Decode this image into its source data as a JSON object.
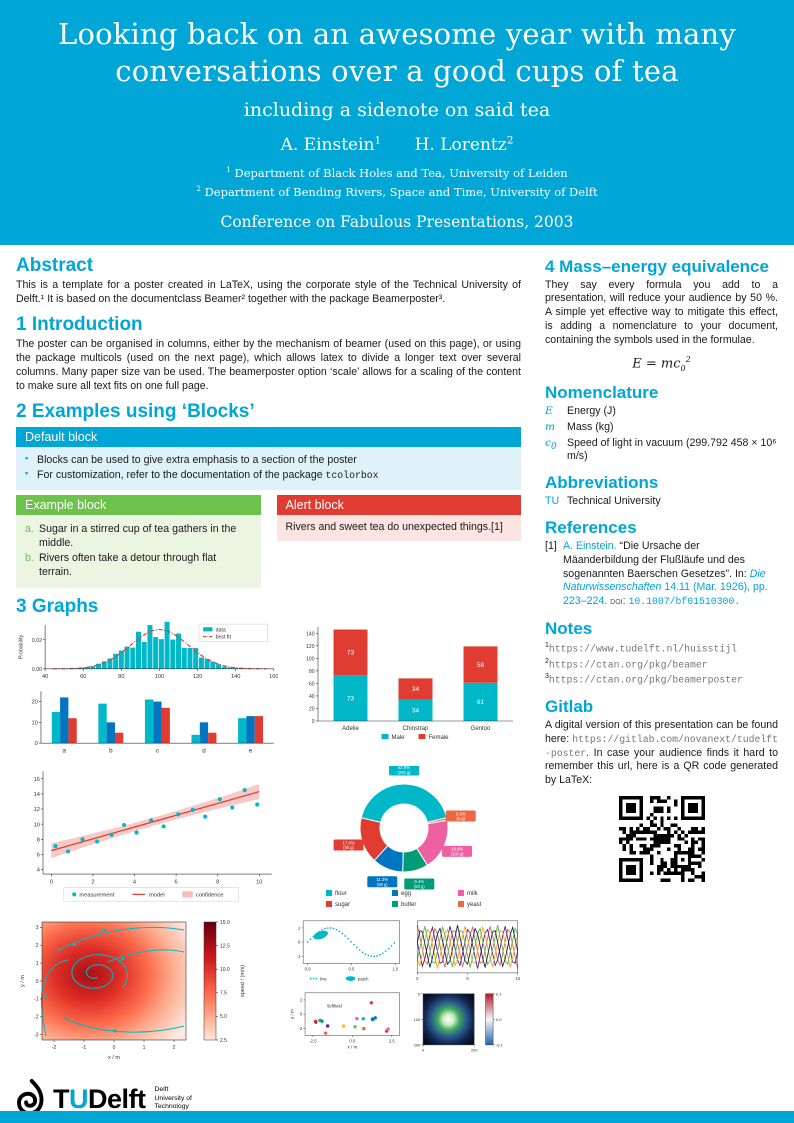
{
  "colors": {
    "primary": "#00A6D6",
    "teal": "#00B8C8",
    "blue": "#0076C2",
    "red": "#E03C31",
    "green": "#6CC24A",
    "dark_green": "#009B77",
    "pink": "#EF60A3",
    "orange": "#EC6842",
    "band_pink": "#F6BDB9",
    "palette": [
      "#00B8C8",
      "#0076C2",
      "#E03C31",
      "#009B77",
      "#EF60A3",
      "#EC6842",
      "#6F1D77",
      "#FFB81C",
      "#6CC24A",
      "#0C2340"
    ]
  },
  "header": {
    "title_line1": "Looking back on an awesome year with many",
    "title_line2": "conversations over a good cups of tea",
    "subtitle": "including a sidenote on said tea",
    "authors": [
      {
        "name": "A. Einstein",
        "sup": "1"
      },
      {
        "name": "H. Lorentz",
        "sup": "2"
      }
    ],
    "affiliations": [
      {
        "sup": "1",
        "text": "Department of Black Holes and Tea, University of Leiden"
      },
      {
        "sup": "2",
        "text": "Department of Bending Rivers, Space and Time, University of Delft"
      }
    ],
    "conference": "Conference on Fabulous Presentations, 2003"
  },
  "left": {
    "abstract": {
      "heading": "Abstract",
      "text": "This is a template for a poster created in LaTeX, using the corporate style of the Technical University of Delft.¹ It is based on the documentclass Beamer² together with the package Beamerposter³."
    },
    "introduction": {
      "heading": "1 Introduction",
      "text": "The poster can be organised in columns, either by the mechanism of beamer (used on this page), or using the package multicols (used on the next page), which allows latex to divide a longer text over several columns. Many paper size van be used. The beamerposter option ‘scale’ allows for a scaling of the content to make sure all text fits on one full page."
    },
    "examples": {
      "heading": "2 Examples using ‘Blocks’",
      "default_block": {
        "title": "Default block",
        "item1": "Blocks can be used to give extra emphasis to a section of the poster",
        "item2_text": "For customization, refer to the documentation of the package ",
        "item2_code": "tcolorbox"
      },
      "example_block": {
        "title": "Example block",
        "item_a_label": "a.",
        "item_a": "Sugar in a stirred cup of tea gathers in the middle.",
        "item_b_label": "b.",
        "item_b": "Rivers often take a detour through flat terrain."
      },
      "alert_block": {
        "title": "Alert block",
        "text": "Rivers and sweet tea do unexpected things.[1]"
      }
    },
    "graphs": {
      "heading": "3 Graphs"
    }
  },
  "right": {
    "mass_energy": {
      "heading": "4 Mass–energy equivalence",
      "text": "They say every formula you add to a presentation, will reduce your audience by 50 %. A simple yet effective way to mitigate this effect, is adding a nomenclature to your document, containing the symbols used in the formulae.",
      "formula_lhs": "E = mc",
      "formula_sub": "0",
      "formula_sup": "2"
    },
    "nomenclature": {
      "heading": "Nomenclature",
      "rows": [
        {
          "symbol": "E",
          "desc": "Energy (J)"
        },
        {
          "symbol": "m",
          "desc": "Mass (kg)"
        },
        {
          "symbol": "c",
          "sub": "0",
          "desc": "Speed of light in vacuum (299.792 458 × 10⁶ m/s)"
        }
      ]
    },
    "abbreviations": {
      "heading": "Abbreviations",
      "rows": [
        {
          "abbr": "TU",
          "desc": "Technical University"
        }
      ]
    },
    "references": {
      "heading": "References",
      "items": [
        {
          "num": "[1]",
          "authors": "A. Einstein.",
          "title": "“Die Ursache der Mäanderbildung der Flußläufe und des sogenannten Baerschen Gesetzes”. In:",
          "journal": "Die Naturwissenschaften",
          "tail": "14.11 (Mar. 1926), pp. 223–224.",
          "doi_label": "doi:",
          "doi": "10.1007/bf01510300."
        }
      ]
    },
    "notes": {
      "heading": "Notes",
      "items": [
        {
          "sup": "1",
          "url": "https://www.tudelft.nl/huisstijl"
        },
        {
          "sup": "2",
          "url": "https://ctan.org/pkg/beamer"
        },
        {
          "sup": "3",
          "url": "https://ctan.org/pkg/beamerposter"
        }
      ]
    },
    "gitlab": {
      "heading": "Gitlab",
      "text_before": "A digital version of this presentation can be found here: ",
      "url": "https://gitlab.com/novanext/tudelft-poster",
      "text_after": ". In case your audience finds it hard to remember this url, here is a QR code generated by LaTeX:"
    }
  },
  "logo": {
    "tu_t": "T",
    "tu_u": "U",
    "delft": "Delft",
    "tagline1": "Delft",
    "tagline2": "University of",
    "tagline3": "Technology"
  },
  "chart_data": {
    "histogram": {
      "type": "bar",
      "ylabel": "Probability",
      "xlim": [
        40,
        160
      ],
      "xticks": [
        40,
        60,
        80,
        100,
        120,
        140,
        160
      ],
      "yticks": [
        "0.00",
        "0.02"
      ],
      "legend": [
        "data",
        "best fit"
      ],
      "fit": {
        "mean": 100,
        "std": 15,
        "peak": 0.027
      }
    },
    "grouped_bars": {
      "type": "bar",
      "categories": [
        "a",
        "b",
        "c",
        "d",
        "e"
      ],
      "series": [
        {
          "color": "teal",
          "values": [
            15,
            19,
            21,
            4,
            12
          ]
        },
        {
          "color": "blue",
          "values": [
            22,
            10,
            20,
            10,
            13
          ]
        },
        {
          "color": "red",
          "values": [
            12,
            5,
            17,
            5,
            13
          ]
        }
      ],
      "yticks": [
        0,
        10,
        20
      ]
    },
    "stacked_bars": {
      "type": "bar",
      "categories": [
        "Adelie",
        "Chinstrap",
        "Gentoo"
      ],
      "series": [
        {
          "name": "Male",
          "color": "teal",
          "values": [
            73,
            34,
            61
          ]
        },
        {
          "name": "Female",
          "color": "red",
          "values": [
            73,
            34,
            58
          ]
        }
      ],
      "ylim": [
        0,
        140
      ],
      "yticks": [
        0,
        20,
        40,
        60,
        80,
        100,
        120,
        140
      ]
    },
    "regression": {
      "type": "scatter",
      "legend": [
        "measurement",
        "model",
        "confidence"
      ],
      "xticks": [
        0,
        2,
        4,
        6,
        8,
        10
      ],
      "yticks": [
        4,
        6,
        8,
        10,
        12,
        14,
        16
      ],
      "model": {
        "intercept": 6.5,
        "slope": 0.78
      },
      "points": [
        [
          0.2,
          7.1
        ],
        [
          0.8,
          6.4
        ],
        [
          1.5,
          8.0
        ],
        [
          2.2,
          7.7
        ],
        [
          2.9,
          8.6
        ],
        [
          3.5,
          9.9
        ],
        [
          4.1,
          8.9
        ],
        [
          4.8,
          10.5
        ],
        [
          5.4,
          9.7
        ],
        [
          6.1,
          11.3
        ],
        [
          6.8,
          11.9
        ],
        [
          7.4,
          11.0
        ],
        [
          8.1,
          13.3
        ],
        [
          8.7,
          12.2
        ],
        [
          9.3,
          14.5
        ],
        [
          9.9,
          12.6
        ]
      ]
    },
    "donut": {
      "type": "pie",
      "slices": [
        {
          "label": "flour",
          "pct": 42.5,
          "grams": 225,
          "color": "#00B8C8"
        },
        {
          "label": "sugar",
          "pct": 17.0,
          "grams": 90,
          "color": "#E03C31"
        },
        {
          "label": "egg",
          "pct": 11.3,
          "grams": 60,
          "color": "#0076C2"
        },
        {
          "label": "butter",
          "pct": 9.4,
          "grams": 50,
          "color": "#009B77"
        },
        {
          "label": "milk",
          "pct": 18.9,
          "grams": 100,
          "color": "#EF60A3"
        },
        {
          "label": "yeast",
          "pct": 0.9,
          "grams": 5,
          "color": "#EC6842"
        }
      ]
    },
    "streamplot": {
      "type": "heatmap",
      "xlabel": "x / m",
      "ylabel": "y / m",
      "xticks": [
        -2,
        -1,
        0,
        1,
        2
      ],
      "yticks": [
        -3,
        -2,
        -1,
        0,
        1,
        2,
        3
      ],
      "colorbar": {
        "label": "speed / (m/s)",
        "ticks": [
          "15.0",
          "12.5",
          "10.0",
          "7.5",
          "5.0",
          "2.5"
        ]
      }
    },
    "line_patch": {
      "type": "line",
      "legend": [
        "line",
        "patch"
      ],
      "xticks": [
        "0.0",
        "0.5",
        "1.0"
      ],
      "yticks": [
        1,
        0,
        -1
      ]
    },
    "hatch": {
      "type": "line",
      "xticks": [
        0,
        5,
        10
      ]
    },
    "field_scatter": {
      "type": "scatter",
      "annotation": "\\leftfield",
      "xlabel": "x / m",
      "ylabel": "y / m",
      "xticks": [
        "-2.5",
        "0.0",
        "2.5"
      ],
      "yticks": [
        2,
        0,
        -2
      ]
    },
    "blob_image": {
      "type": "heatmap",
      "yticks": [
        0,
        100,
        200
      ],
      "xticks": [
        0,
        200
      ],
      "colorbar_ticks": [
        "0.1",
        "0.0",
        "-0.1"
      ]
    }
  }
}
